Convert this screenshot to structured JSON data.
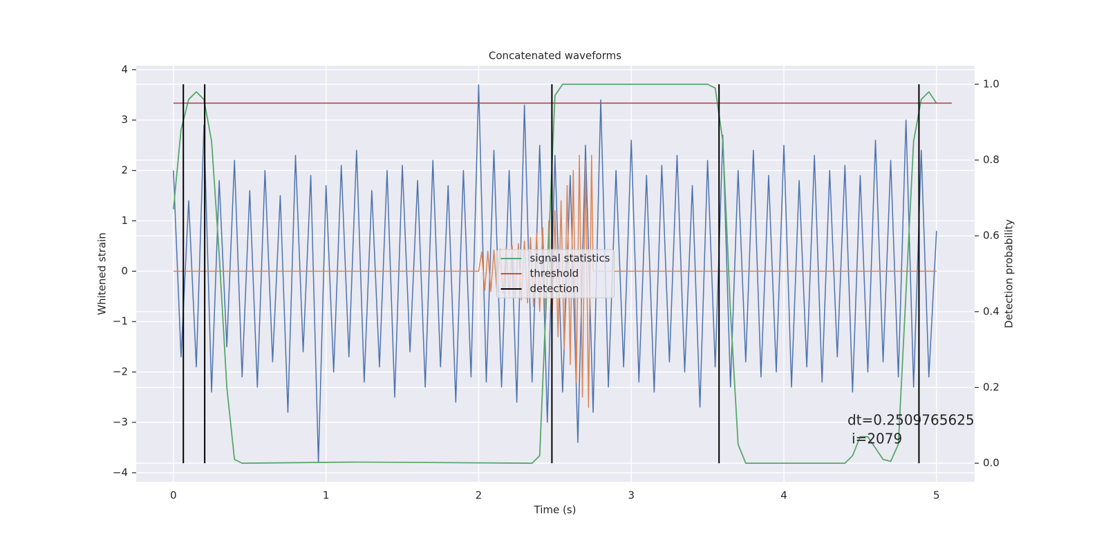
{
  "chart_data": {
    "type": "line",
    "title": "Concatenated waveforms",
    "xlabel": "Time (s)",
    "ylabel": "Whitened strain",
    "y2label": "Detection probability",
    "xlim": [
      -0.244,
      5.25
    ],
    "ylim": [
      -4.18,
      4.08
    ],
    "y2lim": [
      -0.049,
      1.049
    ],
    "xticks": [
      0,
      1,
      2,
      3,
      4,
      5
    ],
    "yticks": [
      {
        "value": -4,
        "label": "−4"
      },
      {
        "value": -3,
        "label": "−3"
      },
      {
        "value": -2,
        "label": "−2"
      },
      {
        "value": -1,
        "label": "−1"
      },
      0,
      1,
      2,
      3,
      4
    ],
    "y2ticks": [
      {
        "value": 0,
        "label": "0.0"
      },
      {
        "value": 0.2,
        "label": "0.2"
      },
      {
        "value": 0.4,
        "label": "0.4"
      },
      {
        "value": 0.6,
        "label": "0.6"
      },
      {
        "value": 0.8,
        "label": "0.8"
      },
      {
        "value": 1,
        "label": "1.0"
      }
    ],
    "grid": true,
    "legend": "center",
    "annotation": [
      "dt=0.2509765625",
      "i=2079"
    ],
    "series": [
      {
        "color": "#4c72b0",
        "x": [
          0,
          0.05,
          0.1,
          0.15,
          0.2,
          0.25,
          0.3,
          0.35,
          0.4,
          0.45,
          0.5,
          0.55,
          0.6,
          0.65,
          0.7,
          0.75,
          0.8,
          0.85,
          0.9,
          0.95,
          1.0,
          1.05,
          1.1,
          1.15,
          1.2,
          1.25,
          1.3,
          1.35,
          1.4,
          1.45,
          1.5,
          1.55,
          1.6,
          1.65,
          1.7,
          1.75,
          1.8,
          1.85,
          1.9,
          1.95,
          2.0,
          2.05,
          2.1,
          2.15,
          2.2,
          2.25,
          2.3,
          2.35,
          2.4,
          2.45,
          2.5,
          2.55,
          2.6,
          2.65,
          2.7,
          2.75,
          2.8,
          2.85,
          2.9,
          2.95,
          3.0,
          3.05,
          3.1,
          3.15,
          3.2,
          3.25,
          3.3,
          3.35,
          3.4,
          3.45,
          3.5,
          3.55,
          3.6,
          3.65,
          3.7,
          3.75,
          3.8,
          3.85,
          3.9,
          3.95,
          4.0,
          4.05,
          4.1,
          4.15,
          4.2,
          4.25,
          4.3,
          4.35,
          4.4,
          4.45,
          4.5,
          4.55,
          4.6,
          4.65,
          4.7,
          4.75,
          4.8,
          4.85,
          4.9,
          4.95,
          5.0
        ],
        "values": [
          2.0,
          -1.7,
          1.4,
          -1.9,
          2.9,
          -2.4,
          1.8,
          -1.5,
          2.2,
          -2.1,
          1.6,
          -2.3,
          2.0,
          -1.8,
          1.5,
          -2.8,
          2.3,
          -1.6,
          1.9,
          -3.8,
          1.7,
          -2.0,
          2.1,
          -1.7,
          2.4,
          -2.2,
          1.6,
          -1.9,
          2.0,
          -2.5,
          2.1,
          -1.6,
          1.8,
          -2.3,
          2.2,
          -1.9,
          1.7,
          -2.6,
          2.0,
          -2.1,
          3.7,
          -2.2,
          2.4,
          -2.3,
          2.0,
          -2.6,
          3.3,
          -2.2,
          2.5,
          -3.0,
          2.3,
          -2.4,
          1.9,
          -3.4,
          2.5,
          -2.8,
          3.4,
          -2.3,
          2.0,
          -1.9,
          2.6,
          -2.2,
          1.9,
          -2.4,
          2.1,
          -1.8,
          2.3,
          -2.0,
          1.7,
          -2.7,
          2.2,
          -1.9,
          2.7,
          -2.3,
          2.0,
          -1.8,
          2.4,
          -2.1,
          1.9,
          -2.0,
          2.5,
          -2.3,
          1.8,
          -1.9,
          2.3,
          -2.2,
          2.0,
          -1.7,
          2.1,
          -2.4,
          1.9,
          -2.0,
          2.6,
          -1.8,
          2.2,
          -2.1,
          3.0,
          -2.3,
          2.4,
          -2.1,
          0.8
        ]
      },
      {
        "color": "#dd8452",
        "x": [
          0,
          2.0,
          2.02,
          2.04,
          2.06,
          2.08,
          2.1,
          2.12,
          2.14,
          2.16,
          2.18,
          2.2,
          2.22,
          2.24,
          2.26,
          2.28,
          2.3,
          2.32,
          2.34,
          2.36,
          2.38,
          2.4,
          2.42,
          2.44,
          2.46,
          2.48,
          2.5,
          2.52,
          2.54,
          2.56,
          2.58,
          2.6,
          2.62,
          2.64,
          2.66,
          2.68,
          2.7,
          2.72,
          2.74,
          2.75,
          5.0
        ],
        "values": [
          0,
          0,
          0.38,
          -0.38,
          0.4,
          -0.4,
          0.42,
          -0.42,
          0.44,
          -0.45,
          0.47,
          -0.48,
          0.5,
          -0.52,
          0.55,
          -0.57,
          0.6,
          -0.63,
          0.67,
          -0.7,
          0.75,
          -0.8,
          0.86,
          -0.93,
          1.0,
          -1.1,
          1.2,
          -1.3,
          1.4,
          -1.55,
          1.7,
          -1.85,
          2.0,
          -2.2,
          2.3,
          -2.5,
          2.2,
          -2.7,
          2.3,
          0,
          0
        ]
      },
      {
        "name": "signal statistics",
        "color": "#55a868",
        "axis": "y2",
        "x": [
          0,
          0.05,
          0.1,
          0.15,
          0.2,
          0.25,
          0.3,
          0.35,
          0.4,
          0.45,
          1.2,
          2.35,
          2.4,
          2.45,
          2.5,
          2.55,
          3.5,
          3.55,
          3.6,
          3.65,
          3.7,
          3.75,
          4.4,
          4.45,
          4.5,
          4.55,
          4.6,
          4.65,
          4.7,
          4.75,
          4.8,
          4.85,
          4.9,
          4.95,
          5.0
        ],
        "values": [
          0.67,
          0.88,
          0.96,
          0.98,
          0.96,
          0.85,
          0.55,
          0.2,
          0.01,
          0.0,
          0.003,
          0.0,
          0.02,
          0.5,
          0.97,
          1.0,
          1.0,
          0.99,
          0.85,
          0.4,
          0.05,
          0.0,
          0.0,
          0.02,
          0.07,
          0.07,
          0.04,
          0.01,
          0.005,
          0.05,
          0.45,
          0.85,
          0.96,
          0.98,
          0.95
        ]
      },
      {
        "name": "threshold",
        "color": "#c44e52",
        "axis": "y2",
        "x": [
          0,
          5.1
        ],
        "values": [
          0.95,
          0.95
        ]
      },
      {
        "name": "detection",
        "color": "#000000",
        "axis": "y2",
        "x": [
          0.065,
          0.205,
          2.48,
          3.575,
          4.885
        ],
        "ymin": 0,
        "ymax": 1
      }
    ]
  }
}
